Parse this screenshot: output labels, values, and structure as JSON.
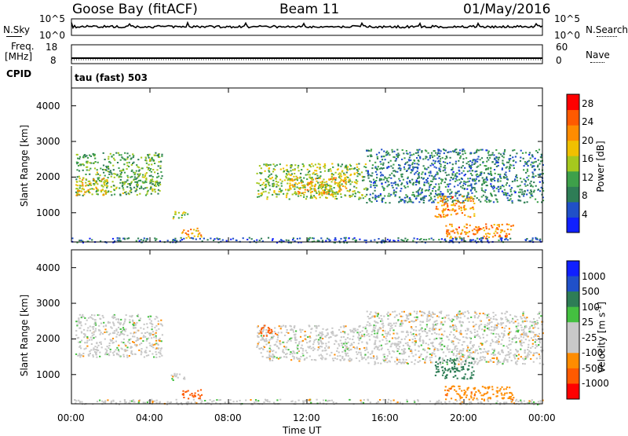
{
  "header": {
    "station": "Goose Bay (fitACF)",
    "beam": "Beam 11",
    "date": "01/May/2016"
  },
  "strip_labels": {
    "nsky": "N.Sky",
    "nsearch": "N.Search",
    "freq": "Freq.",
    "freq_unit": "[MHz]",
    "nave": "Nave",
    "cpid": "CPID",
    "cpid_value": "tau (fast) 503",
    "noise_ticks_left": [
      "10^5",
      "10^0"
    ],
    "noise_ticks_right": [
      "10^5",
      "10^0"
    ],
    "freq_ticks": [
      "18",
      "8"
    ],
    "nave_ticks": [
      "60",
      "0"
    ]
  },
  "colors": {
    "power_scale": [
      "#1020ff",
      "#2050c8",
      "#2e7d56",
      "#3ea04a",
      "#a5c81e",
      "#f0c000",
      "#ff8c00",
      "#ff5a00",
      "#ff0000"
    ],
    "velocity_scale": [
      "#1020ff",
      "#2050c8",
      "#2e7d56",
      "#44c040",
      "#c8c8c8",
      "#c8c8c8",
      "#ff8c00",
      "#ff5a00",
      "#ff0000"
    ],
    "ground_scatter": "#c8c8c8"
  },
  "chart_data": [
    {
      "type": "heatmap",
      "panel": "power",
      "xlabel": "Time UT",
      "ylabel": "Slant Range [km]",
      "xlim": [
        "00:00",
        "24:00"
      ],
      "ylim": [
        180,
        4500
      ],
      "x_ticks": [
        "00:00",
        "04:00",
        "08:00",
        "12:00",
        "16:00",
        "20:00",
        "00:00"
      ],
      "y_ticks": [
        1000,
        2000,
        3000,
        4000
      ],
      "colorbar": {
        "label": "Power [dB]",
        "ticks": [
          4,
          8,
          12,
          16,
          20,
          24,
          28
        ],
        "range": [
          0,
          30
        ]
      },
      "regions": [
        {
          "t0": 0.2,
          "t1": 4.6,
          "r0": 1500,
          "r1": 2700,
          "level": 12
        },
        {
          "t0": 0.2,
          "t1": 1.8,
          "r0": 1500,
          "r1": 2000,
          "level": 18
        },
        {
          "t0": 5.0,
          "t1": 5.9,
          "r0": 850,
          "r1": 1050,
          "level": 16
        },
        {
          "t0": 5.6,
          "t1": 6.6,
          "r0": 300,
          "r1": 600,
          "level": 20
        },
        {
          "t0": 9.4,
          "t1": 15.0,
          "r0": 1400,
          "r1": 2400,
          "level": 14
        },
        {
          "t0": 11.0,
          "t1": 14.0,
          "r0": 1500,
          "r1": 2000,
          "level": 19
        },
        {
          "t0": 15.0,
          "t1": 24.0,
          "r0": 1300,
          "r1": 2800,
          "level": 8
        },
        {
          "t0": 18.5,
          "t1": 20.5,
          "r0": 900,
          "r1": 1500,
          "level": 22
        },
        {
          "t0": 19.0,
          "t1": 22.5,
          "r0": 300,
          "r1": 700,
          "level": 22
        },
        {
          "t0": 0.0,
          "t1": 24.0,
          "r0": 180,
          "r1": 320,
          "level": 6
        }
      ]
    },
    {
      "type": "heatmap",
      "panel": "velocity",
      "xlabel": "Time UT",
      "ylabel": "Slant Range [km]",
      "xlim": [
        "00:00",
        "24:00"
      ],
      "ylim": [
        180,
        4500
      ],
      "x_ticks": [
        "00:00",
        "04:00",
        "08:00",
        "12:00",
        "16:00",
        "20:00",
        "00:00"
      ],
      "y_ticks": [
        1000,
        2000,
        3000,
        4000
      ],
      "colorbar": {
        "label": "Velocity [m s^-1]",
        "ticks": [
          "1000",
          "500",
          "100",
          "25",
          "-25",
          "-100",
          "-500",
          "-1000"
        ]
      },
      "regions": [
        {
          "t0": 0.2,
          "t1": 4.6,
          "r0": 1500,
          "r1": 2700,
          "velocity": 0
        },
        {
          "t0": 5.0,
          "t1": 5.9,
          "r0": 850,
          "r1": 1050,
          "velocity": 0
        },
        {
          "t0": 5.6,
          "t1": 6.6,
          "r0": 300,
          "r1": 600,
          "velocity": -150
        },
        {
          "t0": 9.4,
          "t1": 15.0,
          "r0": 1400,
          "r1": 2400,
          "velocity": 0
        },
        {
          "t0": 9.6,
          "t1": 10.4,
          "r0": 2100,
          "r1": 2400,
          "velocity": -300
        },
        {
          "t0": 15.0,
          "t1": 24.0,
          "r0": 1300,
          "r1": 2800,
          "velocity": 0
        },
        {
          "t0": 18.5,
          "t1": 20.5,
          "r0": 900,
          "r1": 1500,
          "velocity": 400
        },
        {
          "t0": 19.0,
          "t1": 22.5,
          "r0": 300,
          "r1": 700,
          "velocity": -80
        },
        {
          "t0": 0.0,
          "t1": 24.0,
          "r0": 180,
          "r1": 320,
          "velocity": 0
        }
      ]
    }
  ]
}
